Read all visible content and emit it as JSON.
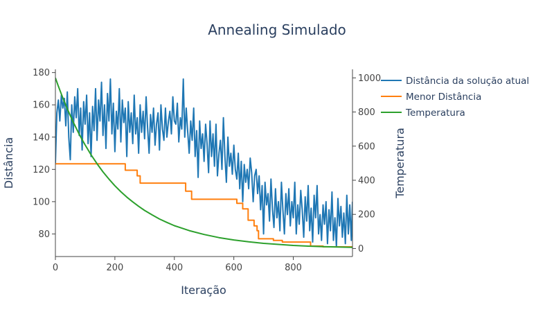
{
  "chart_data": {
    "type": "line",
    "title": "Annealing Simulado",
    "xlabel": "Iteração",
    "ylabel": "Distância",
    "y2label": "Temperatura",
    "xlim": [
      0,
      999
    ],
    "ylim": [
      66,
      182
    ],
    "y2lim": [
      -47,
      1050
    ],
    "x_ticks": [
      0,
      200,
      400,
      600,
      800
    ],
    "y_ticks": [
      80,
      100,
      120,
      140,
      160,
      180
    ],
    "y2_ticks": [
      0,
      200,
      400,
      600,
      800,
      1000
    ],
    "legend_position": "top-right",
    "series": [
      {
        "name": "Distância da solução atual",
        "axis": "y",
        "color": "#1f77b4",
        "x": [
          0,
          5,
          10,
          15,
          20,
          25,
          30,
          35,
          40,
          45,
          50,
          55,
          60,
          65,
          70,
          75,
          80,
          85,
          90,
          95,
          100,
          105,
          110,
          115,
          120,
          125,
          130,
          135,
          140,
          145,
          150,
          155,
          160,
          165,
          170,
          175,
          180,
          185,
          190,
          195,
          200,
          205,
          210,
          215,
          220,
          225,
          230,
          235,
          240,
          245,
          250,
          255,
          260,
          265,
          270,
          275,
          280,
          285,
          290,
          295,
          300,
          305,
          310,
          315,
          320,
          325,
          330,
          335,
          340,
          345,
          350,
          355,
          360,
          365,
          370,
          375,
          380,
          385,
          390,
          395,
          400,
          405,
          410,
          415,
          420,
          425,
          430,
          435,
          440,
          445,
          450,
          455,
          460,
          465,
          470,
          475,
          480,
          485,
          490,
          495,
          500,
          505,
          510,
          515,
          520,
          525,
          530,
          535,
          540,
          545,
          550,
          555,
          560,
          565,
          570,
          575,
          580,
          585,
          590,
          595,
          600,
          605,
          610,
          615,
          620,
          625,
          630,
          635,
          640,
          645,
          650,
          655,
          660,
          665,
          670,
          675,
          680,
          685,
          690,
          695,
          700,
          705,
          710,
          715,
          720,
          725,
          730,
          735,
          740,
          745,
          750,
          755,
          760,
          765,
          770,
          775,
          780,
          785,
          790,
          795,
          800,
          805,
          810,
          815,
          820,
          825,
          830,
          835,
          840,
          845,
          850,
          855,
          860,
          865,
          870,
          875,
          880,
          885,
          890,
          895,
          900,
          905,
          910,
          915,
          920,
          925,
          930,
          935,
          940,
          945,
          950,
          955,
          960,
          965,
          970,
          975,
          980,
          985,
          990,
          995,
          999
        ],
        "values": [
          124,
          155,
          163,
          150,
          166,
          158,
          164,
          147,
          168,
          140,
          126,
          160,
          143,
          165,
          152,
          170,
          141,
          158,
          132,
          162,
          148,
          166,
          136,
          155,
          128,
          159,
          144,
          170,
          138,
          163,
          150,
          174,
          141,
          160,
          133,
          167,
          150,
          176,
          142,
          161,
          131,
          156,
          145,
          170,
          137,
          163,
          149,
          158,
          128,
          162,
          143,
          155,
          136,
          166,
          142,
          152,
          130,
          160,
          143,
          156,
          139,
          165,
          146,
          130,
          154,
          143,
          158,
          135,
          148,
          155,
          132,
          160,
          145,
          138,
          158,
          140,
          150,
          156,
          142,
          165,
          150,
          148,
          161,
          137,
          152,
          145,
          176,
          140,
          158,
          143,
          130,
          150,
          138,
          158,
          128,
          144,
          115,
          150,
          133,
          142,
          125,
          148,
          136,
          118,
          150,
          128,
          142,
          122,
          148,
          116,
          130,
          138,
          120,
          152,
          128,
          112,
          140,
          122,
          130,
          117,
          135,
          120,
          114,
          130,
          108,
          125,
          100,
          123,
          112,
          120,
          108,
          127,
          118,
          100,
          116,
          120,
          105,
          116,
          95,
          110,
          80,
          112,
          98,
          105,
          88,
          114,
          95,
          84,
          108,
          90,
          100,
          82,
          112,
          95,
          80,
          105,
          92,
          108,
          85,
          100,
          90,
          112,
          80,
          98,
          86,
          107,
          95,
          78,
          103,
          88,
          110,
          82,
          96,
          75,
          104,
          90,
          110,
          80,
          92,
          76,
          98,
          86,
          100,
          74,
          95,
          82,
          106,
          76,
          90,
          72,
          102,
          85,
          97,
          78,
          93,
          74,
          104,
          80,
          98,
          76,
          100
        ]
      },
      {
        "name": "Menor Distância",
        "axis": "y",
        "color": "#ff7f0e",
        "x": [
          0,
          235,
          235,
          275,
          275,
          285,
          285,
          438,
          438,
          458,
          458,
          610,
          610,
          630,
          630,
          648,
          648,
          668,
          668,
          678,
          678,
          683,
          683,
          733,
          733,
          738,
          738,
          755,
          755,
          763,
          763,
          858,
          858,
          900,
          900,
          999
        ],
        "values": [
          123.5,
          123.5,
          119.5,
          119.5,
          116,
          116,
          111.5,
          111.5,
          106.5,
          106.5,
          101.5,
          101.5,
          99,
          99,
          95.5,
          95.5,
          88.5,
          88.5,
          85,
          85,
          82,
          82,
          77,
          77,
          76,
          76,
          76,
          76,
          76,
          76,
          75,
          75,
          72.5,
          72.5,
          72,
          72
        ]
      },
      {
        "name": "Temperatura",
        "axis": "y2",
        "color": "#2ca02c",
        "x": [
          0,
          10,
          20,
          30,
          40,
          50,
          60,
          70,
          80,
          90,
          100,
          120,
          140,
          160,
          180,
          200,
          220,
          240,
          260,
          280,
          300,
          325,
          350,
          375,
          400,
          450,
          500,
          550,
          600,
          650,
          700,
          750,
          800,
          850,
          900,
          950,
          999
        ],
        "values": [
          1000,
          951,
          905,
          861,
          819,
          779,
          741,
          705,
          670,
          638,
          607,
          549,
          497,
          449,
          407,
          368,
          333,
          301,
          273,
          247,
          223,
          197,
          173,
          153,
          134,
          105,
          82,
          64,
          50,
          39,
          30,
          24,
          18,
          14,
          11,
          9,
          7
        ]
      }
    ]
  }
}
